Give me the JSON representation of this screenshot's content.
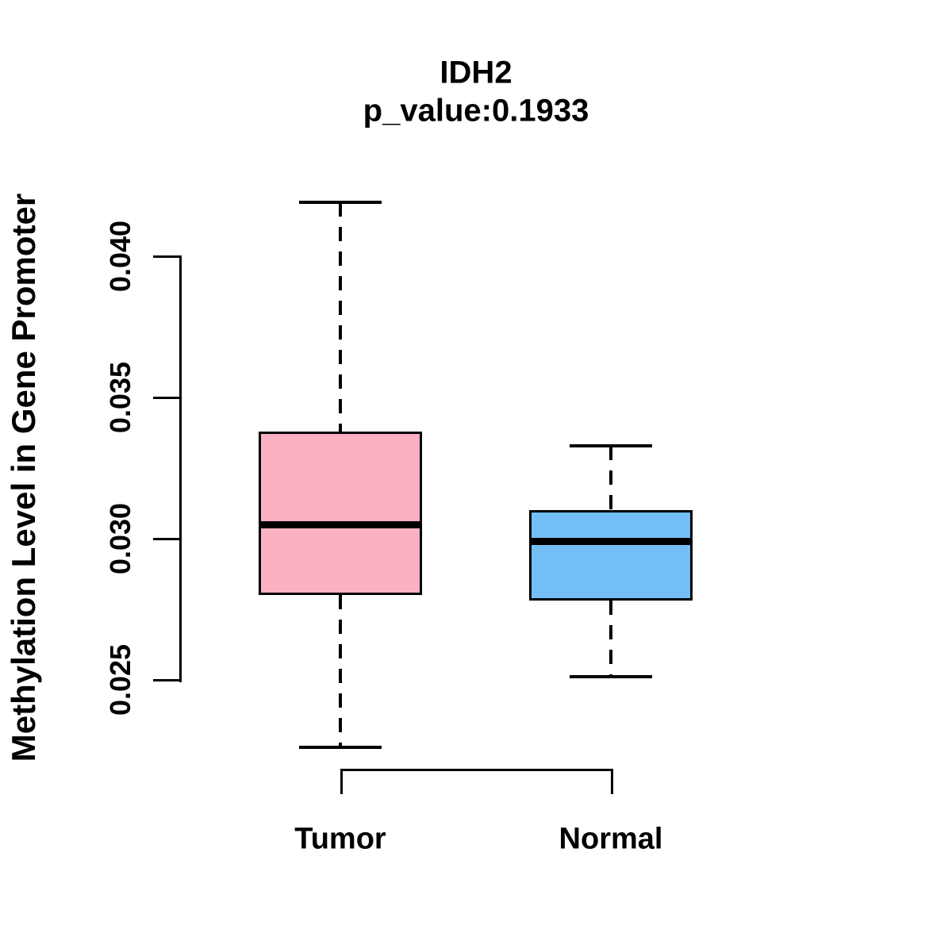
{
  "chart_data": {
    "type": "box",
    "title": "IDH2",
    "subtitle": "p_value:0.1933",
    "ylabel": "Methylation Level in Gene Promoter",
    "xlabel": "",
    "categories": [
      "Tumor",
      "Normal"
    ],
    "series": [
      {
        "name": "Tumor",
        "color": "#FCB1C3",
        "whisker_low": 0.0226,
        "q1": 0.028,
        "median": 0.0305,
        "q3": 0.0338,
        "whisker_high": 0.0419
      },
      {
        "name": "Normal",
        "color": "#74BEF7",
        "whisker_low": 0.0251,
        "q1": 0.0278,
        "median": 0.0299,
        "q3": 0.031,
        "whisker_high": 0.0333
      }
    ],
    "y_ticks": [
      {
        "label": "0.025",
        "value": 0.025
      },
      {
        "label": "0.030",
        "value": 0.03
      },
      {
        "label": "0.035",
        "value": 0.035
      },
      {
        "label": "0.040",
        "value": 0.04
      }
    ],
    "ylim": [
      0.025,
      0.04
    ],
    "grid": false,
    "legend": "none",
    "axis_color": "#000000",
    "median_color": "#000000",
    "background": "#FFFFFF"
  }
}
